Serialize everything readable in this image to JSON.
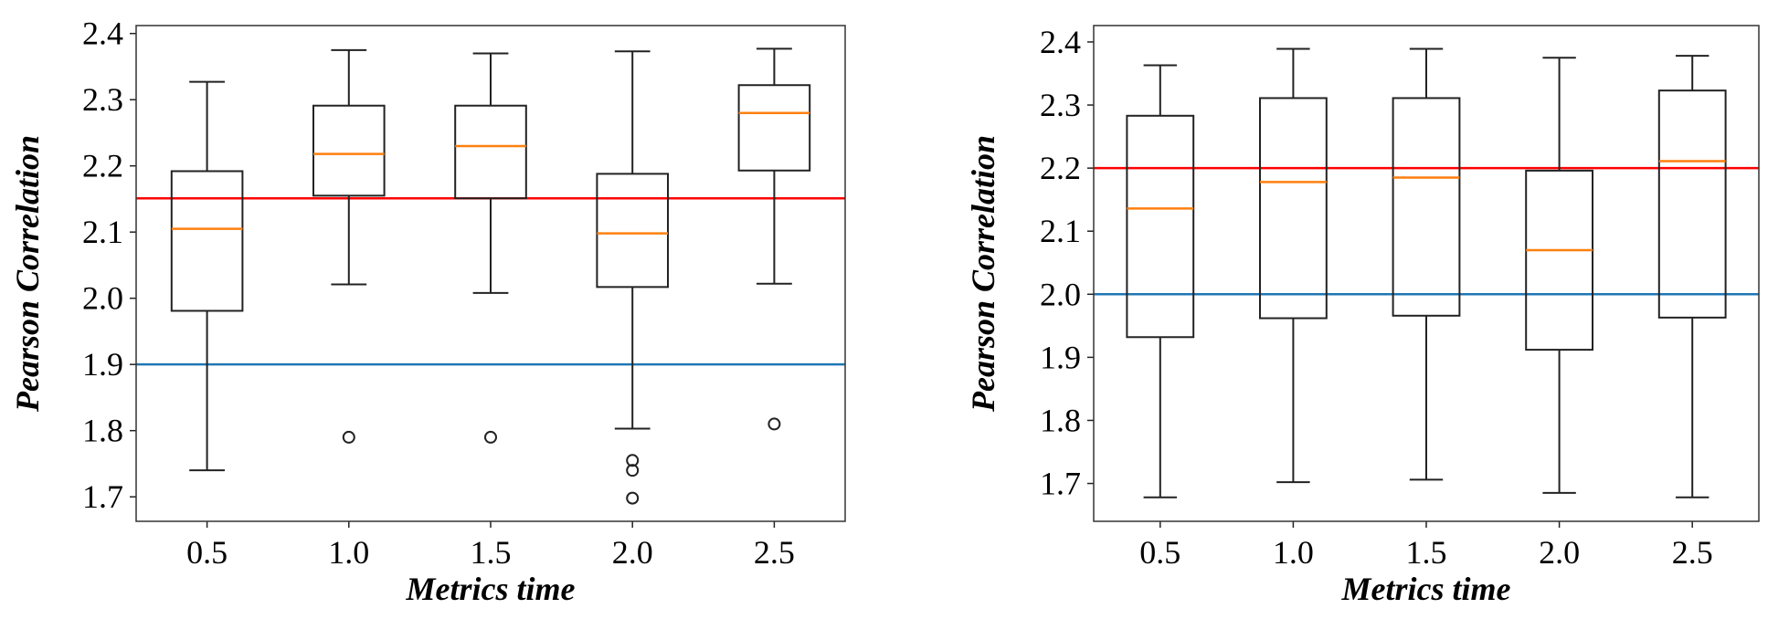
{
  "chart_data": [
    {
      "type": "box",
      "title": "",
      "xlabel": "Metrics time",
      "ylabel": "Pearson Correlation",
      "categories": [
        "0.5",
        "1.0",
        "1.5",
        "2.0",
        "2.5"
      ],
      "ylim": [
        1.663,
        2.412
      ],
      "yticks": [
        "1.7",
        "1.8",
        "1.9",
        "2.0",
        "2.1",
        "2.2",
        "2.3",
        "2.4"
      ],
      "boxes": [
        {
          "whislo": 1.74,
          "q1": 1.981,
          "med": 2.105,
          "q3": 2.192,
          "whishi": 2.327,
          "fliers": []
        },
        {
          "whislo": 2.021,
          "q1": 2.155,
          "med": 2.218,
          "q3": 2.291,
          "whishi": 2.375,
          "fliers": [
            1.79
          ]
        },
        {
          "whislo": 2.008,
          "q1": 2.151,
          "med": 2.23,
          "q3": 2.291,
          "whishi": 2.37,
          "fliers": [
            1.79
          ]
        },
        {
          "whislo": 1.803,
          "q1": 2.017,
          "med": 2.098,
          "q3": 2.188,
          "whishi": 2.373,
          "fliers": [
            1.755,
            1.74,
            1.698
          ]
        },
        {
          "whislo": 2.022,
          "q1": 2.193,
          "med": 2.28,
          "q3": 2.322,
          "whishi": 2.377,
          "fliers": [
            1.81
          ]
        }
      ],
      "hlines": [
        {
          "y": 2.151,
          "color": "#ff0000"
        },
        {
          "y": 1.9,
          "color": "#1f77b4"
        }
      ],
      "median_color": "#ff7f0e",
      "grid": false
    },
    {
      "type": "box",
      "title": "",
      "xlabel": "Metrics time",
      "ylabel": "Pearson Correlation",
      "categories": [
        "0.5",
        "1.0",
        "1.5",
        "2.0",
        "2.5"
      ],
      "ylim": [
        1.64,
        2.426
      ],
      "yticks": [
        "1.7",
        "1.8",
        "1.9",
        "2.0",
        "2.1",
        "2.2",
        "2.3",
        "2.4"
      ],
      "boxes": [
        {
          "whislo": 1.678,
          "q1": 1.932,
          "med": 2.136,
          "q3": 2.283,
          "whishi": 2.363,
          "fliers": []
        },
        {
          "whislo": 1.702,
          "q1": 1.962,
          "med": 2.178,
          "q3": 2.311,
          "whishi": 2.389,
          "fliers": []
        },
        {
          "whislo": 1.706,
          "q1": 1.966,
          "med": 2.185,
          "q3": 2.311,
          "whishi": 2.389,
          "fliers": []
        },
        {
          "whislo": 1.685,
          "q1": 1.912,
          "med": 2.07,
          "q3": 2.196,
          "whishi": 2.375,
          "fliers": []
        },
        {
          "whislo": 1.678,
          "q1": 1.963,
          "med": 2.211,
          "q3": 2.323,
          "whishi": 2.378,
          "fliers": []
        }
      ],
      "hlines": [
        {
          "y": 2.2,
          "color": "#ff0000"
        },
        {
          "y": 2.0,
          "color": "#1f77b4"
        }
      ],
      "median_color": "#ff7f0e",
      "grid": false
    }
  ]
}
